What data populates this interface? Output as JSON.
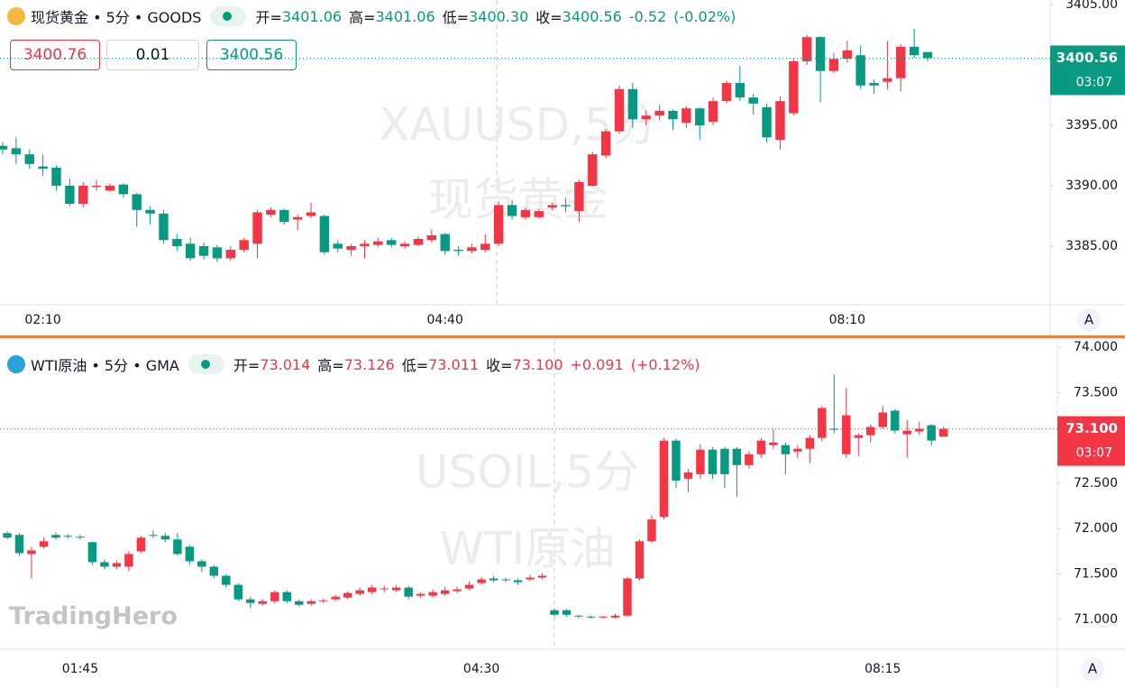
{
  "branding": "TradingHero",
  "chart_data": [
    {
      "type": "candlestick",
      "up_color": "#f23645",
      "down_color": "#089981",
      "header": {
        "title": "现货黄金 • 5分 • GOODS",
        "fields": [
          {
            "label": "开=",
            "value": "3401.06"
          },
          {
            "label": "高=",
            "value": "3401.06"
          },
          {
            "label": "低=",
            "value": "3400.30"
          },
          {
            "label": "收=",
            "value": "3400.56"
          }
        ],
        "change": "-0.52",
        "change_pct": "(-0.02%)"
      },
      "order_panel": {
        "sell": "3400.76",
        "quantity": "0.01",
        "buy": "3400.56"
      },
      "watermark": [
        "XAUUSD,5分",
        "现货黄金"
      ],
      "price_tag": {
        "price": "3400.56",
        "countdown": "03:07"
      },
      "axis_button": "A",
      "ylim": [
        3380.15,
        3405.37
      ],
      "yticks": [
        {
          "value": 3385,
          "label": "3385.00"
        },
        {
          "value": 3390,
          "label": "3390.00"
        },
        {
          "value": 3395,
          "label": "3395.00"
        },
        {
          "value": 3400,
          "label": "3400.00"
        },
        {
          "value": 3405,
          "label": "3405.00"
        }
      ],
      "categories": [
        null,
        null,
        null,
        "02:10",
        null,
        null,
        null,
        null,
        null,
        null,
        null,
        null,
        null,
        null,
        null,
        null,
        null,
        null,
        null,
        null,
        null,
        null,
        null,
        null,
        null,
        null,
        null,
        null,
        null,
        null,
        null,
        null,
        null,
        "04:40",
        null,
        null,
        null,
        null,
        null,
        null,
        null,
        null,
        null,
        null,
        null,
        null,
        null,
        null,
        null,
        null,
        null,
        null,
        null,
        null,
        null,
        null,
        null,
        null,
        null,
        null,
        null,
        null,
        null,
        "08:10",
        null,
        null,
        null,
        null,
        null,
        null
      ],
      "open": [
        3393.3,
        3393.1,
        3392.6,
        3391.6,
        3391.5,
        3390.0,
        3388.5,
        3389.9,
        3389.6,
        3390.1,
        3389.3,
        3388.0,
        3387.7,
        3385.6,
        3385.2,
        3385.0,
        3384.9,
        3384.0,
        3384.7,
        3385.2,
        3387.6,
        3388.0,
        3387.2,
        3387.5,
        3387.5,
        3385.2,
        3384.7,
        3385.0,
        3385.1,
        3385.5,
        3385.0,
        3385.1,
        3385.5,
        3386.0,
        3384.7,
        3384.6,
        3384.7,
        3385.2,
        3388.4,
        3387.4,
        3387.4,
        3388.2,
        3388.4,
        3387.9,
        3390.0,
        3392.5,
        3394.5,
        3398.0,
        3395.5,
        3395.8,
        3396.2,
        3395.2,
        3396.4,
        3395.3,
        3397.0,
        3398.5,
        3397.3,
        3396.5,
        3393.8,
        3396.0,
        3400.3,
        3402.3,
        3399.5,
        3400.5,
        3400.8,
        3398.5,
        3398.6,
        3398.9,
        3401.5,
        3401.06
      ],
      "high": [
        3393.6,
        3394.0,
        3393.0,
        3392.6,
        3391.7,
        3390.6,
        3390.3,
        3390.5,
        3390.2,
        3390.2,
        3389.4,
        3388.3,
        3388.0,
        3386.0,
        3385.7,
        3385.3,
        3385.1,
        3385.0,
        3385.7,
        3388.0,
        3388.2,
        3388.1,
        3387.6,
        3388.6,
        3387.6,
        3385.5,
        3385.2,
        3385.5,
        3385.7,
        3385.7,
        3385.4,
        3385.8,
        3386.4,
        3386.1,
        3385.0,
        3385.2,
        3386.0,
        3388.7,
        3388.8,
        3388.2,
        3388.1,
        3388.6,
        3389.0,
        3390.5,
        3392.8,
        3394.7,
        3398.3,
        3398.5,
        3396.2,
        3396.7,
        3396.3,
        3396.6,
        3396.5,
        3397.3,
        3398.7,
        3399.9,
        3397.6,
        3396.8,
        3397.4,
        3400.5,
        3402.5,
        3402.4,
        3401.0,
        3402.0,
        3401.6,
        3398.8,
        3402.0,
        3401.7,
        3403.0,
        3401.06
      ],
      "low": [
        3392.6,
        3391.8,
        3391.4,
        3390.8,
        3389.6,
        3388.3,
        3388.2,
        3389.6,
        3389.5,
        3389.0,
        3386.6,
        3386.8,
        3385.2,
        3384.6,
        3383.8,
        3383.9,
        3383.7,
        3383.8,
        3384.5,
        3384.0,
        3387.4,
        3386.8,
        3386.3,
        3387.3,
        3384.3,
        3384.5,
        3384.2,
        3384.0,
        3384.9,
        3384.9,
        3384.8,
        3385.0,
        3385.3,
        3384.3,
        3384.2,
        3384.4,
        3384.5,
        3385.0,
        3387.2,
        3387.2,
        3387.3,
        3388.0,
        3387.8,
        3387.0,
        3389.9,
        3392.3,
        3394.3,
        3394.8,
        3395.0,
        3395.4,
        3394.6,
        3394.8,
        3393.8,
        3395.0,
        3396.8,
        3397.0,
        3395.9,
        3393.6,
        3393.0,
        3395.8,
        3400.0,
        3396.9,
        3399.3,
        3400.2,
        3398.0,
        3397.6,
        3398.0,
        3397.8,
        3400.6,
        3400.3
      ],
      "close": [
        3393.0,
        3392.6,
        3391.8,
        3391.4,
        3390.0,
        3388.5,
        3390.0,
        3390.0,
        3390.0,
        3389.3,
        3388.0,
        3387.7,
        3385.5,
        3385.0,
        3384.0,
        3384.2,
        3384.0,
        3384.7,
        3385.5,
        3387.8,
        3388.0,
        3387.0,
        3387.4,
        3387.8,
        3384.5,
        3384.8,
        3385.0,
        3385.2,
        3385.4,
        3385.1,
        3385.2,
        3385.6,
        3385.9,
        3384.6,
        3384.6,
        3384.9,
        3385.2,
        3388.4,
        3387.5,
        3388.0,
        3387.9,
        3388.4,
        3388.3,
        3390.3,
        3392.6,
        3394.5,
        3398.0,
        3395.5,
        3395.8,
        3396.2,
        3395.5,
        3396.4,
        3395.0,
        3397.0,
        3398.5,
        3397.3,
        3396.8,
        3394.0,
        3397.0,
        3400.3,
        3402.3,
        3399.5,
        3400.5,
        3401.2,
        3398.3,
        3398.3,
        3398.9,
        3401.5,
        3400.8,
        3400.56
      ]
    },
    {
      "type": "candlestick",
      "up_color": "#f23645",
      "down_color": "#089981",
      "header": {
        "title": "WTI原油 • 5分 • GMA",
        "fields": [
          {
            "label": "开=",
            "value": "73.014"
          },
          {
            "label": "高=",
            "value": "73.126"
          },
          {
            "label": "低=",
            "value": "73.011"
          },
          {
            "label": "收=",
            "value": "73.100"
          }
        ],
        "change": "+0.091",
        "change_pct": "(+0.12%)"
      },
      "watermark": [
        "USOIL,5分",
        "WTI原油"
      ],
      "price_tag": {
        "price": "73.100",
        "countdown": "03:07"
      },
      "axis_button": "A",
      "ylim": [
        70.67,
        74.07
      ],
      "yticks": [
        {
          "value": 71,
          "label": "71.000"
        },
        {
          "value": 71.5,
          "label": "71.500"
        },
        {
          "value": 72,
          "label": "72.000"
        },
        {
          "value": 72.5,
          "label": "72.500"
        },
        {
          "value": 73,
          "label": "73.000"
        },
        {
          "value": 73.5,
          "label": "73.500"
        },
        {
          "value": 74,
          "label": "74.000"
        }
      ],
      "categories": [
        null,
        null,
        null,
        null,
        null,
        null,
        "01:45",
        null,
        null,
        null,
        null,
        null,
        null,
        null,
        null,
        null,
        null,
        null,
        null,
        null,
        null,
        null,
        null,
        null,
        null,
        null,
        null,
        null,
        null,
        null,
        null,
        null,
        null,
        null,
        null,
        null,
        null,
        null,
        null,
        "04:30",
        null,
        null,
        null,
        null,
        null,
        null,
        null,
        null,
        null,
        null,
        null,
        null,
        null,
        null,
        null,
        null,
        null,
        null,
        null,
        null,
        null,
        null,
        null,
        null,
        null,
        null,
        null,
        null,
        null,
        null,
        null,
        null,
        "08:15",
        null,
        null,
        null,
        null,
        null
      ],
      "open": [
        71.95,
        71.93,
        71.72,
        71.8,
        71.93,
        71.92,
        71.91,
        71.85,
        71.63,
        71.58,
        71.58,
        71.75,
        71.93,
        71.92,
        71.88,
        71.8,
        71.64,
        71.58,
        71.48,
        71.38,
        71.22,
        71.17,
        71.2,
        71.3,
        71.2,
        71.17,
        71.2,
        71.22,
        71.24,
        71.28,
        71.3,
        71.33,
        71.32,
        71.35,
        71.26,
        71.26,
        71.28,
        71.31,
        71.34,
        71.4,
        71.45,
        71.44,
        71.43,
        71.44,
        71.46,
        71.1,
        71.1,
        71.04,
        71.03,
        71.02,
        71.02,
        71.04,
        71.45,
        71.86,
        72.13,
        72.97,
        72.55,
        72.6,
        72.87,
        72.88,
        72.88,
        72.7,
        72.82,
        72.92,
        72.92,
        72.85,
        72.88,
        73.0,
        73.1,
        72.82,
        73.0,
        73.03,
        73.12,
        73.3,
        73.04,
        73.07,
        73.14,
        73.014
      ],
      "high": [
        71.97,
        71.95,
        71.8,
        71.9,
        71.96,
        71.94,
        71.93,
        71.86,
        71.66,
        71.65,
        71.75,
        71.92,
        71.98,
        71.95,
        71.95,
        71.82,
        71.66,
        71.6,
        71.5,
        71.4,
        71.25,
        71.22,
        71.32,
        71.32,
        71.22,
        71.22,
        71.23,
        71.27,
        71.31,
        71.35,
        71.38,
        71.37,
        71.38,
        71.37,
        71.3,
        71.33,
        71.36,
        71.36,
        71.42,
        71.47,
        71.48,
        71.46,
        71.45,
        71.49,
        71.51,
        71.12,
        71.11,
        71.05,
        71.04,
        71.04,
        71.06,
        71.47,
        71.88,
        72.15,
        73.0,
        72.99,
        72.66,
        72.93,
        72.9,
        72.9,
        72.9,
        72.85,
        73.0,
        73.1,
        72.95,
        72.92,
        73.03,
        73.35,
        73.7,
        73.55,
        73.05,
        73.15,
        73.35,
        73.32,
        73.2,
        73.18,
        73.15,
        73.126
      ],
      "low": [
        71.88,
        71.7,
        71.45,
        71.78,
        71.88,
        71.89,
        71.88,
        71.6,
        71.55,
        71.55,
        71.53,
        71.73,
        71.9,
        71.85,
        71.7,
        71.6,
        71.52,
        71.45,
        71.35,
        71.2,
        71.12,
        71.15,
        71.18,
        71.18,
        71.14,
        71.15,
        71.18,
        71.2,
        71.22,
        71.26,
        71.28,
        71.3,
        71.3,
        71.22,
        71.24,
        71.24,
        71.26,
        71.29,
        71.32,
        71.38,
        71.41,
        71.41,
        71.38,
        71.42,
        71.44,
        71.03,
        71.03,
        71.01,
        71.01,
        71.01,
        71.01,
        71.03,
        71.43,
        71.84,
        72.1,
        72.45,
        72.4,
        72.55,
        72.55,
        72.45,
        72.35,
        72.66,
        72.78,
        72.88,
        72.6,
        72.78,
        72.72,
        72.96,
        73.05,
        72.78,
        72.8,
        72.95,
        73.1,
        73.05,
        72.78,
        73.03,
        72.92,
        73.011
      ],
      "close": [
        71.9,
        71.73,
        71.76,
        71.86,
        71.9,
        71.91,
        71.9,
        71.63,
        71.58,
        71.62,
        71.72,
        71.9,
        71.92,
        71.88,
        71.72,
        71.64,
        71.58,
        71.48,
        71.38,
        71.22,
        71.18,
        71.2,
        71.3,
        71.2,
        71.16,
        71.2,
        71.21,
        71.25,
        71.29,
        71.32,
        71.35,
        71.34,
        71.35,
        71.25,
        71.28,
        71.3,
        71.32,
        71.33,
        71.38,
        71.44,
        71.43,
        71.43,
        71.41,
        71.46,
        71.48,
        71.05,
        71.05,
        71.03,
        71.02,
        71.03,
        71.04,
        71.45,
        71.86,
        72.1,
        72.97,
        72.53,
        72.62,
        72.87,
        72.6,
        72.6,
        72.7,
        72.82,
        72.97,
        72.95,
        72.82,
        72.88,
        73.0,
        73.33,
        73.09,
        73.25,
        73.03,
        73.12,
        73.28,
        73.08,
        73.08,
        73.1,
        72.97,
        73.1
      ]
    }
  ]
}
